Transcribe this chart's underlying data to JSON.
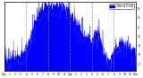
{
  "line_color": "#0000ff",
  "fill_color": "#0000ff",
  "background_color": "#ffffff",
  "fig_bg_color": "#ffffff",
  "ylim": [
    -8.5,
    6.5
  ],
  "xlim": [
    0,
    1440
  ],
  "yticks": [
    5,
    3,
    1,
    -1,
    -3,
    -5,
    -7
  ],
  "grid_color": "#888888",
  "legend_color": "#0000ff",
  "legend_label": "Wind Chill",
  "n_points": 1440,
  "seed": 17,
  "base_shape": [
    [
      0,
      -6.5
    ],
    [
      60,
      -6.8
    ],
    [
      120,
      -6.5
    ],
    [
      150,
      -6.2
    ],
    [
      180,
      -6.0
    ],
    [
      200,
      -5.8
    ],
    [
      220,
      -5.5
    ],
    [
      240,
      -4.8
    ],
    [
      260,
      -3.5
    ],
    [
      280,
      -2.0
    ],
    [
      300,
      -0.5
    ],
    [
      330,
      1.0
    ],
    [
      360,
      2.5
    ],
    [
      390,
      3.5
    ],
    [
      420,
      4.2
    ],
    [
      450,
      4.8
    ],
    [
      480,
      5.0
    ],
    [
      510,
      4.8
    ],
    [
      540,
      4.5
    ],
    [
      570,
      4.8
    ],
    [
      600,
      5.0
    ],
    [
      630,
      4.8
    ],
    [
      660,
      4.5
    ],
    [
      690,
      4.2
    ],
    [
      720,
      3.5
    ],
    [
      750,
      2.5
    ],
    [
      780,
      1.5
    ],
    [
      810,
      0.5
    ],
    [
      840,
      -0.5
    ],
    [
      870,
      -1.5
    ],
    [
      900,
      -2.0
    ],
    [
      930,
      -2.5
    ],
    [
      960,
      -3.0
    ],
    [
      990,
      -1.0
    ],
    [
      1020,
      -0.5
    ],
    [
      1050,
      -2.0
    ],
    [
      1080,
      -5.0
    ],
    [
      1110,
      -6.5
    ],
    [
      1140,
      -7.0
    ],
    [
      1170,
      -6.5
    ],
    [
      1200,
      -5.5
    ],
    [
      1230,
      -4.5
    ],
    [
      1260,
      -3.5
    ],
    [
      1290,
      -3.0
    ],
    [
      1320,
      -3.5
    ],
    [
      1350,
      -4.0
    ],
    [
      1380,
      -4.5
    ],
    [
      1440,
      -5.0
    ]
  ],
  "noise_scale": 0.9,
  "spike_scale": 2.0,
  "spike_interval": 10,
  "xtick_positions": [
    0,
    60,
    120,
    180,
    240,
    300,
    360,
    420,
    480,
    540,
    600,
    660,
    720,
    780,
    840,
    900,
    960,
    1020,
    1080,
    1140,
    1200,
    1260,
    1320,
    1380,
    1440
  ],
  "xtick_labels": [
    "12a",
    "1",
    "2",
    "3",
    "4",
    "5",
    "6",
    "7",
    "8",
    "9",
    "10",
    "11",
    "12p",
    "1",
    "2",
    "3",
    "4",
    "5",
    "6",
    "7",
    "8",
    "9",
    "10",
    "11",
    "12a"
  ]
}
